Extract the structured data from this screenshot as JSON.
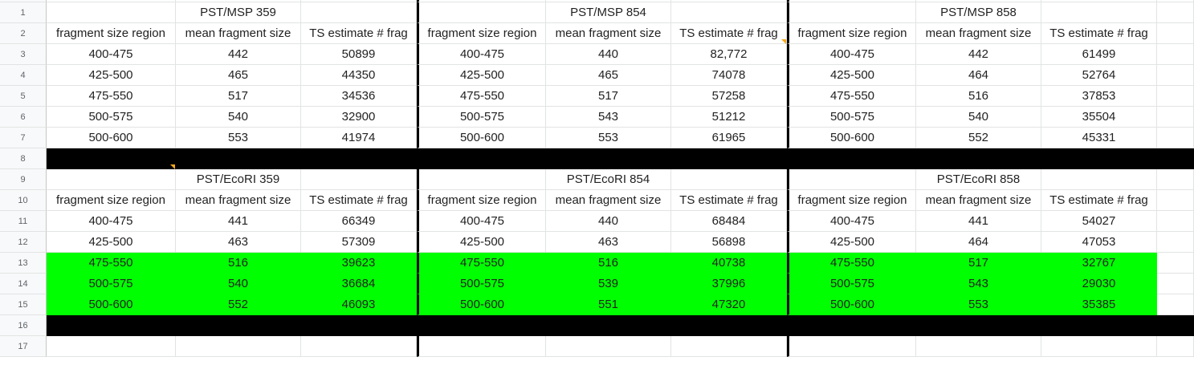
{
  "row_numbers": [
    "1",
    "2",
    "3",
    "4",
    "5",
    "6",
    "7",
    "8",
    "9",
    "10",
    "11",
    "12",
    "13",
    "14",
    "15",
    "16",
    "17"
  ],
  "top_block": {
    "titles": [
      "PST/MSP 359",
      "PST/MSP 854",
      "PST/MSP 858"
    ],
    "headers": [
      "fragment size region",
      "mean fragment size",
      "TS estimate # frag"
    ],
    "rows": [
      [
        "400-475",
        "442",
        "50899",
        "400-475",
        "440",
        "82,772",
        "400-475",
        "442",
        "61499"
      ],
      [
        "425-500",
        "465",
        "44350",
        "425-500",
        "465",
        "74078",
        "425-500",
        "464",
        "52764"
      ],
      [
        "475-550",
        "517",
        "34536",
        "475-550",
        "517",
        "57258",
        "475-550",
        "516",
        "37853"
      ],
      [
        "500-575",
        "540",
        "32900",
        "500-575",
        "543",
        "51212",
        "500-575",
        "540",
        "35504"
      ],
      [
        "500-600",
        "553",
        "41974",
        "500-600",
        "553",
        "61965",
        "500-600",
        "552",
        "45331"
      ]
    ]
  },
  "bottom_block": {
    "titles": [
      "PST/EcoRI 359",
      "PST/EcoRI 854",
      "PST/EcoRI 858"
    ],
    "headers": [
      "fragment size region",
      "mean fragment size",
      "TS estimate # frag"
    ],
    "rows": [
      [
        "400-475",
        "441",
        "66349",
        "400-475",
        "440",
        "68484",
        "400-475",
        "441",
        "54027"
      ],
      [
        "425-500",
        "463",
        "57309",
        "425-500",
        "463",
        "56898",
        "425-500",
        "464",
        "47053"
      ],
      [
        "475-550",
        "516",
        "39623",
        "475-550",
        "516",
        "40738",
        "475-550",
        "517",
        "32767"
      ],
      [
        "500-575",
        "540",
        "36684",
        "500-575",
        "539",
        "37996",
        "500-575",
        "543",
        "29030"
      ],
      [
        "500-600",
        "552",
        "46093",
        "500-600",
        "551",
        "47320",
        "500-600",
        "553",
        "35385"
      ]
    ]
  },
  "colors": {
    "highlight": "#00ff00",
    "separator": "#000000",
    "note_marker": "#f4a81d"
  }
}
